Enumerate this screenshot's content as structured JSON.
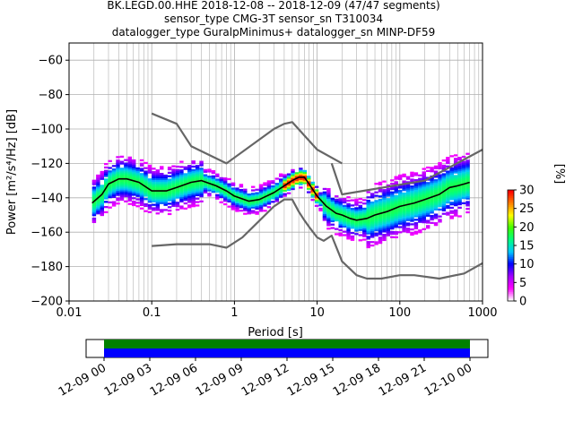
{
  "title_lines": [
    "BK.LEGD.00.HHE   2018-12-08 -- 2018-12-09  (47/47 segments)",
    "sensor_type CMG-3T sensor_sn T310034",
    "datalogger_type GuralpMinimus+ datalogger_sn MINP-DF59"
  ],
  "chart_data": [
    {
      "type": "heatmap",
      "xlabel": "Period [s]",
      "ylabel": "Power [m²/s⁴/Hz] [dB]",
      "xscale": "log",
      "xlim": [
        0.01,
        1000
      ],
      "ylim": [
        -200,
        -50
      ],
      "x_ticks": [
        0.01,
        0.1,
        1,
        10,
        100,
        1000
      ],
      "x_tick_labels": [
        "0.01",
        "0.1",
        "1",
        "10",
        "100",
        "1000"
      ],
      "y_ticks": [
        -200,
        -180,
        -160,
        -140,
        -120,
        -100,
        -80,
        -60
      ],
      "y_tick_labels": [
        "−200",
        "−180",
        "−160",
        "−140",
        "−120",
        "−100",
        "−80",
        "−60"
      ],
      "grid": true,
      "colorbar": {
        "label": "[%]",
        "range": [
          0,
          30
        ],
        "ticks": [
          0,
          5,
          10,
          15,
          20,
          25,
          30
        ],
        "tick_labels": [
          "0",
          "5",
          "10",
          "15",
          "20",
          "25",
          "30"
        ],
        "colormap": [
          "#ffffff",
          "#ff00ff",
          "#a000ff",
          "#0000ff",
          "#00c8ff",
          "#00ff80",
          "#40ff00",
          "#ffff00",
          "#ff8000",
          "#ff0000"
        ]
      },
      "series": [
        {
          "name": "",
          "color": "#000000",
          "x": [
            0.019,
            0.025,
            0.03,
            0.04,
            0.05,
            0.07,
            0.1,
            0.15,
            0.2,
            0.3,
            0.4,
            0.6,
            0.8,
            1,
            1.5,
            2,
            3,
            4,
            5,
            6,
            7,
            8,
            10,
            13,
            17,
            20,
            25,
            30,
            40,
            50,
            70,
            100,
            150,
            200,
            300,
            400,
            500,
            600,
            700
          ],
          "y": [
            -143,
            -138,
            -132,
            -129,
            -129,
            -131,
            -136,
            -136,
            -134,
            -131,
            -130,
            -133,
            -136,
            -139,
            -142,
            -141,
            -137,
            -133,
            -130,
            -128,
            -128,
            -132,
            -139,
            -145,
            -149,
            -150,
            -152,
            -153,
            -152,
            -150,
            -148,
            -145,
            -143,
            -141,
            -138,
            -134,
            -133,
            -132,
            -131
          ]
        },
        {
          "name": "",
          "color": "#666666",
          "x": [
            0.1,
            0.2,
            0.3,
            0.8,
            3,
            4,
            5,
            10,
            20
          ],
          "y": [
            -91,
            -97,
            -110,
            -120,
            -100,
            -97,
            -96,
            -112,
            -120
          ]
        },
        {
          "name": "",
          "color": "#666666",
          "x": [
            15,
            20,
            200,
            1000
          ],
          "y": [
            -120,
            -138,
            -130,
            -112
          ]
        },
        {
          "name": "",
          "color": "#666666",
          "x": [
            0.1,
            0.2,
            0.5,
            0.8,
            1.25,
            3,
            4,
            5,
            6,
            7,
            8,
            10,
            12,
            15,
            20,
            30,
            40,
            60,
            100,
            150,
            300,
            600,
            1000
          ],
          "y": [
            -168,
            -167,
            -167,
            -169,
            -163,
            -145,
            -141,
            -141,
            -148,
            -153,
            -157,
            -163,
            -165,
            -162,
            -177,
            -185,
            -187,
            -187,
            -185,
            -185,
            -187,
            -184,
            -178
          ]
        }
      ]
    },
    {
      "type": "bar",
      "name": "data coverage timeline",
      "x_tick_labels": [
        "12-09 00",
        "12-09 03",
        "12-09 06",
        "12-09 09",
        "12-09 12",
        "12-09 15",
        "12-09 18",
        "12-09 21",
        "12-10 00"
      ],
      "coverage_bands": [
        {
          "color": "#008000",
          "start": "12-09 00",
          "end": "12-10 00"
        },
        {
          "color": "#0000ff",
          "start": "12-09 00",
          "end": "12-10 00"
        }
      ]
    }
  ]
}
